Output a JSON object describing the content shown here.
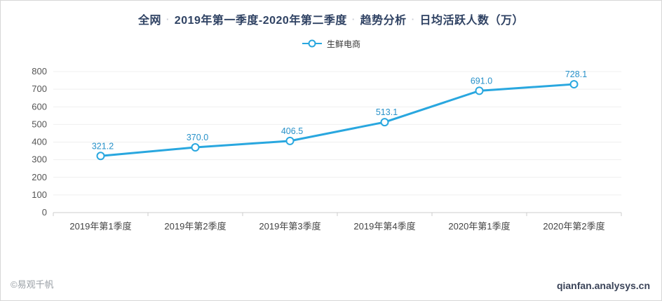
{
  "title": {
    "segments": [
      "全网",
      "2019年第一季度-2020年第二季度",
      "趋势分析",
      "日均活跃人数（万）"
    ],
    "separator": "·"
  },
  "legend": {
    "items": [
      {
        "label": "生鲜电商",
        "color": "#29a7df"
      }
    ]
  },
  "chart_data": {
    "type": "line",
    "title": "全网 · 2019年第一季度-2020年第二季度 · 趋势分析 · 日均活跃人数（万）",
    "categories": [
      "2019年第1季度",
      "2019年第2季度",
      "2019年第3季度",
      "2019年第4季度",
      "2020年第1季度",
      "2020年第2季度"
    ],
    "series": [
      {
        "name": "生鲜电商",
        "values": [
          321.2,
          370.0,
          406.5,
          513.1,
          691.0,
          728.1
        ],
        "data_labels": [
          "321.2",
          "370.0",
          "406.5",
          "513.1",
          "691.0",
          "728.1"
        ]
      }
    ],
    "xlabel": "",
    "ylabel": "",
    "ylim": [
      0,
      800
    ],
    "ytick_step": 100,
    "grid": true,
    "legend_position": "top"
  },
  "footer": {
    "left": "©易观千帆",
    "right": "qianfan.analysys.cn"
  },
  "colors": {
    "line": "#29a7df",
    "marker_fill": "#ffffff",
    "data_label": "#2791c9",
    "title": "#2f4263",
    "grid": "#efefef",
    "axis_line": "#cccccc",
    "tick_text": "#555555",
    "xtick_text": "#444444"
  }
}
